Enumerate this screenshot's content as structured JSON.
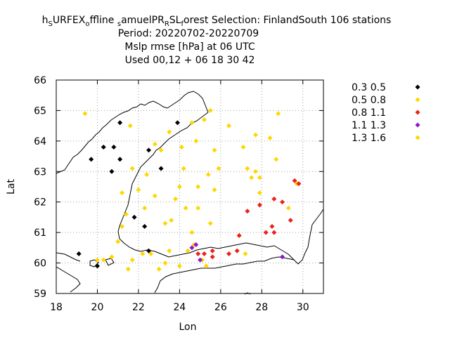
{
  "chart_data": {
    "type": "scatter",
    "title": {
      "line1": {
        "segments": [
          {
            "text": "h",
            "script": "normal"
          },
          {
            "text": "S",
            "script": "sub"
          },
          {
            "text": "URFEX",
            "script": "normal"
          },
          {
            "text": "o",
            "script": "sub"
          },
          {
            "text": "ffline ",
            "script": "normal"
          },
          {
            "text": "s",
            "script": "sub"
          },
          {
            "text": "amuelPR",
            "script": "normal"
          },
          {
            "text": "R",
            "script": "sub"
          },
          {
            "text": "SL",
            "script": "normal"
          },
          {
            "text": "f",
            "script": "sub"
          },
          {
            "text": "orest    Selection: FinlandSouth     106 stations",
            "script": "normal"
          }
        ]
      },
      "line2": "Period: 20220702-20220709",
      "line3": "Mslp rmse [hPa] at  06 UTC",
      "line4": "Used  00,12  + 06 18 30 42"
    },
    "xlabel": "Lon",
    "ylabel": "Lat",
    "xlim": [
      18,
      31
    ],
    "ylim": [
      59,
      66
    ],
    "xticks": [
      18,
      20,
      22,
      24,
      26,
      28,
      30
    ],
    "yticks": [
      59,
      60,
      61,
      62,
      63,
      64,
      65,
      66
    ],
    "grid": true,
    "legend_position": "right",
    "series": [
      {
        "name": "0.3 0.5",
        "color": "#000000",
        "points": [
          [
            19.1,
            60.3
          ],
          [
            19.7,
            63.4
          ],
          [
            20.3,
            63.8
          ],
          [
            20.8,
            63.8
          ],
          [
            21.1,
            64.6
          ],
          [
            21.1,
            63.4
          ],
          [
            20.7,
            63.0
          ],
          [
            21.8,
            61.5
          ],
          [
            22.3,
            61.2
          ],
          [
            22.5,
            63.7
          ],
          [
            23.1,
            63.1
          ],
          [
            23.9,
            64.6
          ],
          [
            22.5,
            60.4
          ],
          [
            20.0,
            59.9
          ]
        ]
      },
      {
        "name": "0.5 0.8",
        "color": "#ffd700",
        "points": [
          [
            19.4,
            64.9
          ],
          [
            20.0,
            60.1
          ],
          [
            20.3,
            60.1
          ],
          [
            20.7,
            60.2
          ],
          [
            21.0,
            60.7
          ],
          [
            21.2,
            62.3
          ],
          [
            21.2,
            61.2
          ],
          [
            21.4,
            61.6
          ],
          [
            21.5,
            59.8
          ],
          [
            21.6,
            64.5
          ],
          [
            21.7,
            60.1
          ],
          [
            21.7,
            63.1
          ],
          [
            22.0,
            62.4
          ],
          [
            22.2,
            60.3
          ],
          [
            22.3,
            61.8
          ],
          [
            22.4,
            62.9
          ],
          [
            22.6,
            60.3
          ],
          [
            22.8,
            63.9
          ],
          [
            22.8,
            62.2
          ],
          [
            23.0,
            59.8
          ],
          [
            23.1,
            63.7
          ],
          [
            23.3,
            60.0
          ],
          [
            23.3,
            61.3
          ],
          [
            23.5,
            64.3
          ],
          [
            23.6,
            61.4
          ],
          [
            23.5,
            60.4
          ],
          [
            23.8,
            62.1
          ],
          [
            24.0,
            62.5
          ],
          [
            24.0,
            59.9
          ],
          [
            24.1,
            63.8
          ],
          [
            24.2,
            63.1
          ],
          [
            24.3,
            61.8
          ],
          [
            24.4,
            60.4
          ],
          [
            24.6,
            64.6
          ],
          [
            24.6,
            61.0
          ],
          [
            24.7,
            60.6
          ],
          [
            24.8,
            64.0
          ],
          [
            24.9,
            62.5
          ],
          [
            24.9,
            61.8
          ],
          [
            25.1,
            60.1
          ],
          [
            25.2,
            64.7
          ],
          [
            25.3,
            59.9
          ],
          [
            25.4,
            62.9
          ],
          [
            25.5,
            65.0
          ],
          [
            25.5,
            61.3
          ],
          [
            25.7,
            63.7
          ],
          [
            25.7,
            62.4
          ],
          [
            25.9,
            63.1
          ],
          [
            26.4,
            64.5
          ],
          [
            26.9,
            60.9
          ],
          [
            27.1,
            63.8
          ],
          [
            27.2,
            60.3
          ],
          [
            27.3,
            63.1
          ],
          [
            27.5,
            62.8
          ],
          [
            27.7,
            64.2
          ],
          [
            27.7,
            63.0
          ],
          [
            27.9,
            62.8
          ],
          [
            27.9,
            62.3
          ],
          [
            28.4,
            64.1
          ],
          [
            28.7,
            63.4
          ],
          [
            28.8,
            64.9
          ],
          [
            29.3,
            61.8
          ],
          [
            29.7,
            62.6
          ]
        ]
      },
      {
        "name": "0.8 1.1",
        "color": "#e8231b",
        "points": [
          [
            24.9,
            60.3
          ],
          [
            25.2,
            60.3
          ],
          [
            25.6,
            60.2
          ],
          [
            25.6,
            60.4
          ],
          [
            26.4,
            60.3
          ],
          [
            26.8,
            60.4
          ],
          [
            26.9,
            60.9
          ],
          [
            27.3,
            61.7
          ],
          [
            27.9,
            61.9
          ],
          [
            28.2,
            61.0
          ],
          [
            28.5,
            61.2
          ],
          [
            28.6,
            61.0
          ],
          [
            28.6,
            62.1
          ],
          [
            29.0,
            62.0
          ],
          [
            29.4,
            61.4
          ],
          [
            29.6,
            62.7
          ],
          [
            29.8,
            62.6
          ]
        ]
      },
      {
        "name": "1.1 1.3",
        "color": "#8b1ac9",
        "points": [
          [
            24.6,
            60.5
          ],
          [
            24.8,
            60.6
          ],
          [
            25.0,
            60.1
          ],
          [
            29.0,
            60.2
          ]
        ]
      },
      {
        "name": "1.3 1.6",
        "color": "#ffd700",
        "points": []
      }
    ]
  }
}
